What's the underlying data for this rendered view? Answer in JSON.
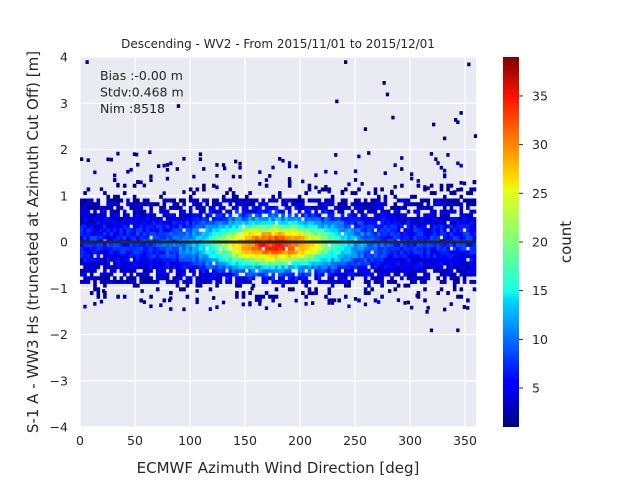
{
  "chart_data": {
    "type": "heatmap",
    "title": "Descending - WV2 - From 2015/11/01 to 2015/12/01",
    "xlabel": "ECMWF Azimuth Wind Direction [deg]",
    "ylabel": "S-1 A - WW3 Hs (truncated at Azimuth Cut Off) [m]",
    "xlim": [
      0,
      360
    ],
    "ylim": [
      -4,
      4
    ],
    "xticks": [
      "0",
      "50",
      "100",
      "150",
      "200",
      "250",
      "300",
      "350"
    ],
    "yticks": [
      "4",
      "3",
      "2",
      "1",
      "0",
      "−1",
      "−2",
      "−3",
      "−4"
    ],
    "grid": true,
    "annotations": [
      "Bias :-0.00 m",
      "Stdv:0.468 m",
      "Nim :8518"
    ],
    "reference_line_y": 0,
    "colorbar": {
      "label": "count",
      "colormap": "jet",
      "range": [
        1,
        39
      ],
      "ticks": [
        "5",
        "10",
        "15",
        "20",
        "25",
        "30",
        "35"
      ]
    },
    "density_peak": {
      "x": 175,
      "y": -0.1,
      "count": 38
    },
    "outliers": [
      [
        5,
        3.85
      ],
      [
        50,
        1.85
      ],
      [
        62,
        1.9
      ],
      [
        70,
        1.6
      ],
      [
        130,
        1.55
      ],
      [
        140,
        1.7
      ],
      [
        240,
        3.85
      ],
      [
        232,
        3.0
      ],
      [
        258,
        2.4
      ],
      [
        275,
        3.4
      ],
      [
        278,
        3.15
      ],
      [
        283,
        2.65
      ],
      [
        340,
        2.6
      ],
      [
        345,
        2.75
      ],
      [
        342,
        2.55
      ],
      [
        352,
        3.8
      ],
      [
        358,
        2.25
      ],
      [
        320,
        2.5
      ],
      [
        330,
        2.2
      ],
      [
        322,
        1.75
      ],
      [
        314,
        -1.55
      ],
      [
        318,
        -1.95
      ],
      [
        330,
        -1.5
      ],
      [
        342,
        -1.95
      ],
      [
        305,
        -1.2
      ],
      [
        280,
        -1.1
      ],
      [
        230,
        -1.3
      ],
      [
        210,
        -1.15
      ],
      [
        155,
        -1.05
      ],
      [
        120,
        -1.25
      ],
      [
        105,
        -1.1
      ],
      [
        80,
        -1.3
      ],
      [
        88,
        2.9
      ],
      [
        55,
        -1.1
      ],
      [
        20,
        -1.1
      ]
    ],
    "colors": {
      "background": "#eaeaf2",
      "grid": "#ffffff",
      "line": "#262626",
      "text": "#262626"
    }
  }
}
